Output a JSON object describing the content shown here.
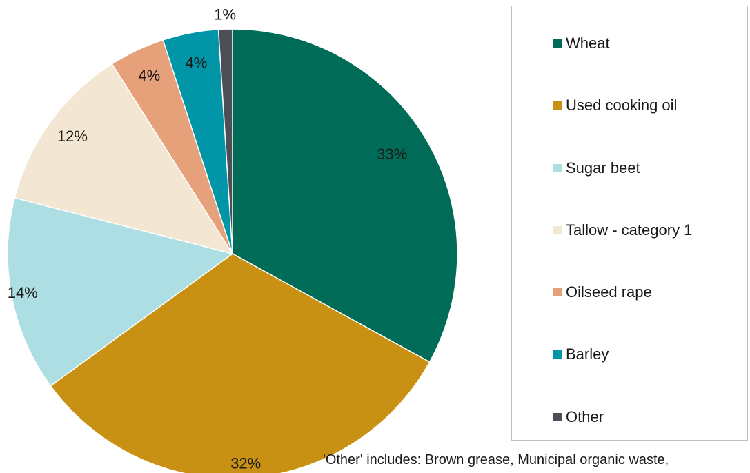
{
  "chart_data": {
    "type": "pie",
    "categories": [
      "Wheat",
      "Used cooking oil",
      "Sugar beet",
      "Tallow - category 1",
      "Oilseed rape",
      "Barley",
      "Other"
    ],
    "values": [
      33,
      32,
      14,
      12,
      4,
      4,
      1
    ],
    "data_labels": [
      "33%",
      "32%",
      "14%",
      "12%",
      "4%",
      "4%",
      "1%"
    ],
    "colors": [
      "#006B56",
      "#C89114",
      "#ADDEE3",
      "#F3E6D2",
      "#E6A17A",
      "#0096A8",
      "#4C4F55"
    ],
    "legend_position": "right",
    "start_angle": "top, clockwise"
  },
  "legend": {
    "items": [
      {
        "label": "Wheat",
        "color": "#006B56"
      },
      {
        "label": "Used cooking oil",
        "color": "#C89114"
      },
      {
        "label": "Sugar beet",
        "color": "#ADDEE3"
      },
      {
        "label": "Tallow - category 1",
        "color": "#F3E6D2"
      },
      {
        "label": "Oilseed rape",
        "color": "#E6A17A"
      },
      {
        "label": "Barley",
        "color": "#0096A8"
      },
      {
        "label": "Other",
        "color": "#4C4F55"
      }
    ]
  },
  "footnote": "'Other' includes: Brown grease, Municipal organic waste,"
}
